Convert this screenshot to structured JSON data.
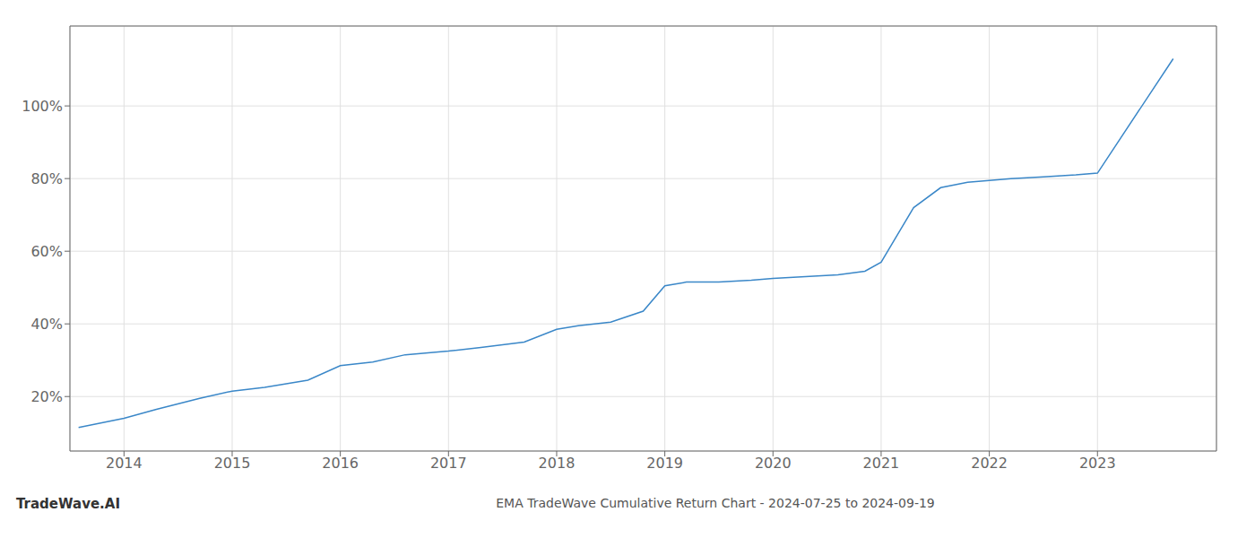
{
  "chart_data": {
    "type": "line",
    "title": "EMA TradeWave Cumulative Return Chart - 2024-07-25 to 2024-09-19",
    "annotations": [
      {
        "text": "TradeWave.AI"
      }
    ],
    "x": [
      2013.58,
      2014.0,
      2014.3,
      2014.7,
      2015.0,
      2015.3,
      2015.7,
      2016.0,
      2016.3,
      2016.6,
      2017.0,
      2017.3,
      2017.7,
      2018.0,
      2018.2,
      2018.5,
      2018.8,
      2019.0,
      2019.2,
      2019.5,
      2019.8,
      2020.0,
      2020.3,
      2020.6,
      2020.85,
      2021.0,
      2021.3,
      2021.55,
      2021.8,
      2022.0,
      2022.2,
      2022.5,
      2022.8,
      2023.0,
      2023.7
    ],
    "values": [
      0.115,
      0.14,
      0.165,
      0.195,
      0.215,
      0.225,
      0.245,
      0.285,
      0.295,
      0.315,
      0.325,
      0.335,
      0.35,
      0.385,
      0.395,
      0.405,
      0.435,
      0.505,
      0.515,
      0.515,
      0.52,
      0.525,
      0.53,
      0.535,
      0.545,
      0.57,
      0.72,
      0.775,
      0.79,
      0.795,
      0.8,
      0.805,
      0.81,
      0.815,
      1.13
    ],
    "color": "#3a87c8",
    "xlim": [
      2013.5,
      2024.1
    ],
    "ylim": [
      0.05,
      1.22
    ],
    "xticks": [
      2014,
      2015,
      2016,
      2017,
      2018,
      2019,
      2020,
      2021,
      2022,
      2023
    ],
    "yticks": [
      {
        "value": 0.2,
        "label": "20%"
      },
      {
        "value": 0.4,
        "label": "40%"
      },
      {
        "value": 0.6,
        "label": "60%"
      },
      {
        "value": 0.8,
        "label": "80%"
      },
      {
        "value": 1.0,
        "label": "100%"
      }
    ],
    "grid": true
  }
}
